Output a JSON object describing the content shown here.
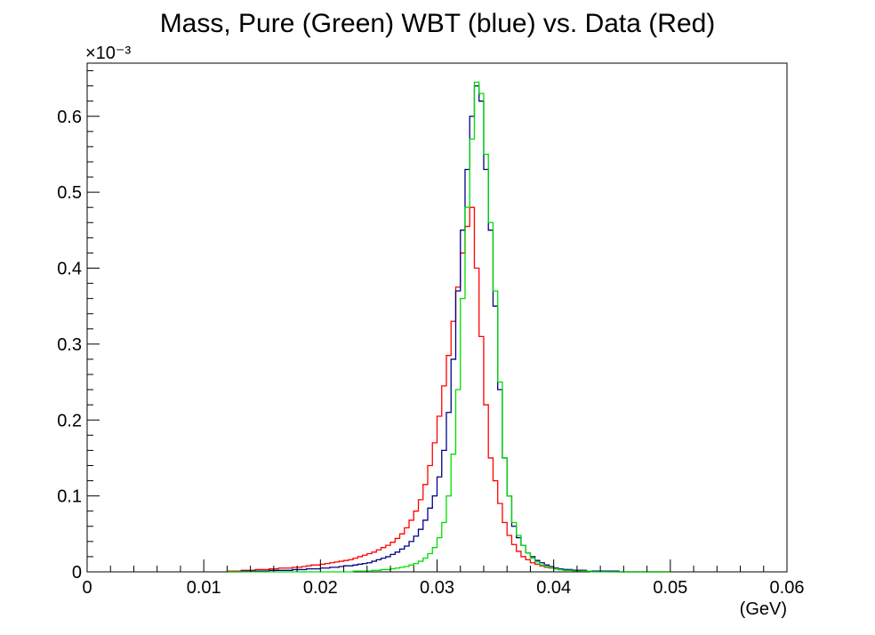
{
  "chart_data": {
    "type": "line",
    "title": "Mass, Pure (Green) WBT (blue) vs. Data (Red)",
    "xlabel": "(GeV)",
    "ylabel": "",
    "y_exponent_label": "×10⁻³",
    "xlim": [
      0,
      0.06
    ],
    "ylim": [
      0,
      0.67
    ],
    "x_ticks": [
      0,
      0.01,
      0.02,
      0.03,
      0.04,
      0.05,
      0.06
    ],
    "x_tick_labels": [
      "0",
      "0.01",
      "0.02",
      "0.03",
      "0.04",
      "0.05",
      "0.06"
    ],
    "y_ticks": [
      0,
      0.1,
      0.2,
      0.3,
      0.4,
      0.5,
      0.6
    ],
    "y_tick_labels": [
      "0",
      "0.1",
      "0.2",
      "0.3",
      "0.4",
      "0.5",
      "0.6"
    ],
    "grid": false,
    "legend": "none",
    "bin_width": 0.0004,
    "x_start": 0.012,
    "series": [
      {
        "color": "#ff0000",
        "values": [
          0.001,
          0.001,
          0.001,
          0.002,
          0.002,
          0.002,
          0.003,
          0.003,
          0.003,
          0.004,
          0.004,
          0.005,
          0.005,
          0.005,
          0.006,
          0.006,
          0.007,
          0.008,
          0.009,
          0.009,
          0.01,
          0.011,
          0.012,
          0.013,
          0.014,
          0.015,
          0.016,
          0.018,
          0.02,
          0.022,
          0.024,
          0.026,
          0.029,
          0.032,
          0.035,
          0.039,
          0.044,
          0.05,
          0.058,
          0.068,
          0.08,
          0.095,
          0.115,
          0.14,
          0.17,
          0.205,
          0.245,
          0.285,
          0.33,
          0.375,
          0.42,
          0.455,
          0.48,
          0.4,
          0.31,
          0.22,
          0.15,
          0.12,
          0.09,
          0.065,
          0.048,
          0.036,
          0.027,
          0.02,
          0.016,
          0.012,
          0.01,
          0.008,
          0.006,
          0.005,
          0.004,
          0.003,
          0.003,
          0.002,
          0.002,
          0.002,
          0.001,
          0.001,
          0.001,
          0.001,
          0.001,
          0.001,
          0.0,
          0.0,
          0.0,
          0.0,
          0.0,
          0.0,
          0.0,
          0.0,
          0.0,
          0.0,
          0.0,
          0.0,
          0.0
        ]
      },
      {
        "color": "#00008b",
        "values": [
          0.0,
          0.0,
          0.0,
          0.001,
          0.001,
          0.001,
          0.001,
          0.001,
          0.001,
          0.002,
          0.002,
          0.002,
          0.002,
          0.002,
          0.003,
          0.003,
          0.003,
          0.004,
          0.004,
          0.004,
          0.005,
          0.005,
          0.006,
          0.006,
          0.007,
          0.008,
          0.008,
          0.009,
          0.01,
          0.011,
          0.012,
          0.014,
          0.016,
          0.018,
          0.02,
          0.023,
          0.026,
          0.03,
          0.034,
          0.04,
          0.047,
          0.056,
          0.068,
          0.084,
          0.1,
          0.125,
          0.16,
          0.21,
          0.28,
          0.37,
          0.45,
          0.53,
          0.6,
          0.64,
          0.62,
          0.53,
          0.45,
          0.35,
          0.24,
          0.15,
          0.1,
          0.06,
          0.045,
          0.035,
          0.025,
          0.02,
          0.015,
          0.012,
          0.009,
          0.007,
          0.005,
          0.004,
          0.003,
          0.003,
          0.002,
          0.002,
          0.002,
          0.001,
          0.001,
          0.001,
          0.001,
          0.001,
          0.001,
          0.001,
          0.0,
          0.0,
          0.0,
          0.0,
          0.0,
          0.0,
          0.0,
          0.0,
          0.0,
          0.0,
          0.0
        ]
      },
      {
        "color": "#00dd00",
        "values": [
          0.0,
          0.0,
          0.0,
          0.0,
          0.0,
          0.0,
          0.0,
          0.0,
          0.0,
          0.0,
          0.0,
          0.0,
          0.0,
          0.0,
          0.0,
          0.0,
          0.0,
          0.0,
          0.0,
          0.0,
          0.0,
          0.0,
          0.0,
          0.0,
          0.0,
          0.0,
          0.0,
          0.001,
          0.001,
          0.001,
          0.001,
          0.002,
          0.002,
          0.003,
          0.003,
          0.004,
          0.005,
          0.006,
          0.007,
          0.009,
          0.011,
          0.014,
          0.018,
          0.024,
          0.032,
          0.045,
          0.065,
          0.1,
          0.155,
          0.24,
          0.36,
          0.48,
          0.57,
          0.645,
          0.63,
          0.55,
          0.46,
          0.37,
          0.25,
          0.15,
          0.1,
          0.065,
          0.048,
          0.035,
          0.025,
          0.018,
          0.013,
          0.009,
          0.007,
          0.005,
          0.004,
          0.003,
          0.002,
          0.002,
          0.001,
          0.001,
          0.001,
          0.001,
          0.0,
          0.0,
          0.0,
          0.0,
          0.0,
          0.0,
          0.0,
          0.0,
          0.0,
          0.0,
          0.0,
          0.0,
          0.0,
          0.0,
          0.0,
          0.0,
          0.0
        ]
      }
    ]
  }
}
